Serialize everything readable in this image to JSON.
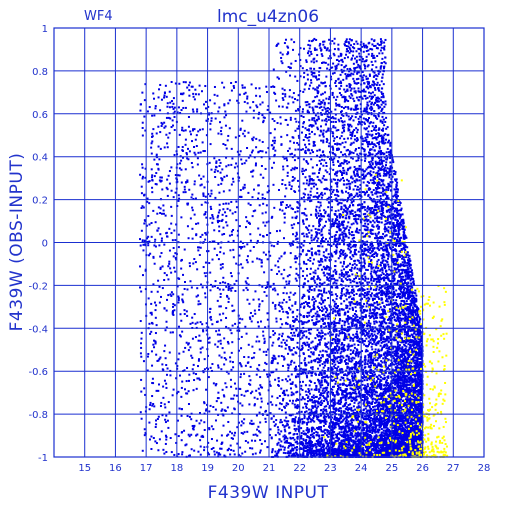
{
  "chart_data": {
    "type": "scatter",
    "panel_label": "WF4",
    "title": "lmc_u4zn06",
    "xlabel": "F439W INPUT",
    "ylabel": "F439W (OBS-INPUT)",
    "xlim": [
      14,
      28
    ],
    "ylim": [
      -1,
      1
    ],
    "x_ticks": [
      15,
      16,
      17,
      18,
      19,
      20,
      21,
      22,
      23,
      24,
      25,
      26,
      27,
      28
    ],
    "y_ticks": [
      "-1",
      "-0.8",
      "-0.6",
      "-0.4",
      "-0.2",
      "0",
      "0.2",
      "0.4",
      "0.6",
      "0.8",
      "1"
    ],
    "grid": true,
    "colors": {
      "axis": "#1a2fd0",
      "series_primary": "#0000e6",
      "series_secondary": "#ffff00"
    },
    "series": [
      {
        "color": "#0000e6",
        "approx_points": 14000,
        "distribution": [
          {
            "x_range": [
              16.8,
              21.2
            ],
            "y_range": [
              -1.0,
              0.75
            ],
            "density": "sparse, uniform"
          },
          {
            "x_range": [
              21.0,
              24.8
            ],
            "y_range": [
              -1.0,
              0.95
            ],
            "density": "increasing with x, very dense below 0"
          },
          {
            "x_range": [
              24.8,
              26.0
            ],
            "y_range": [
              -1.0,
              0.6
            ],
            "density": "dense, upper limit drops toward -0.4 at x=26"
          }
        ]
      },
      {
        "color": "#ffff00",
        "approx_points": 500,
        "distribution": [
          {
            "x_range": [
              22.5,
              26.8
            ],
            "y_range": [
              -1.0,
              0.35
            ],
            "density": "sparse, concentrated near x=25.5-26.2, y<-0.6"
          }
        ]
      }
    ]
  }
}
